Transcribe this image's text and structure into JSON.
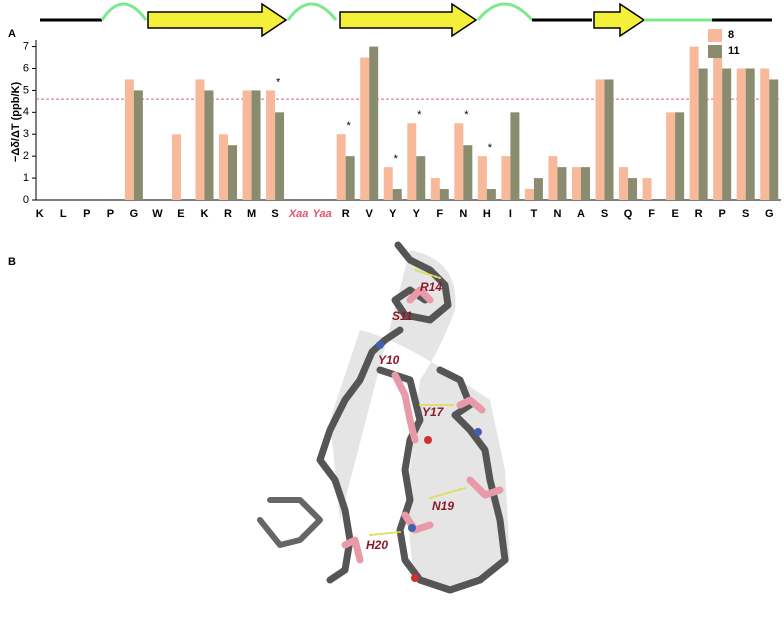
{
  "panel_labels": [
    "A",
    "B"
  ],
  "chart_data": {
    "type": "bar",
    "y_label": "−Δδ/ΔT (ppb/K)",
    "categories": [
      "K",
      "L",
      "P",
      "P",
      "G",
      "W",
      "E",
      "K",
      "R",
      "M",
      "S",
      "Xaa",
      "Yaa",
      "R",
      "V",
      "Y",
      "Y",
      "F",
      "N",
      "H",
      "I",
      "T",
      "N",
      "A",
      "S",
      "Q",
      "F",
      "E",
      "R",
      "P",
      "S",
      "G"
    ],
    "highlighted_indices": [
      11,
      12
    ],
    "highlight_color": "#e8506a",
    "series": [
      {
        "name": "8",
        "color": "#f7b99a",
        "values": [
          null,
          null,
          null,
          null,
          5.5,
          null,
          3.0,
          5.5,
          3.0,
          5.0,
          5.0,
          null,
          null,
          3.0,
          6.5,
          1.5,
          3.5,
          1.0,
          3.5,
          2.0,
          2.0,
          0.5,
          2.0,
          1.5,
          5.5,
          1.5,
          1.0,
          4.0,
          7.0,
          6.5,
          6.0,
          6.0
        ]
      },
      {
        "name": "11",
        "color": "#8a8c70",
        "values": [
          null,
          null,
          null,
          null,
          5.0,
          null,
          null,
          5.0,
          2.5,
          5.0,
          4.0,
          null,
          null,
          2.0,
          7.0,
          0.5,
          2.0,
          0.5,
          2.5,
          0.5,
          4.0,
          1.0,
          1.5,
          1.5,
          5.5,
          1.0,
          null,
          4.0,
          6.0,
          6.0,
          6.0,
          5.5
        ]
      }
    ],
    "ylim": [
      0,
      7.3
    ],
    "yticks": [
      0,
      1,
      2,
      3,
      4,
      5,
      6,
      7
    ],
    "reference_line": {
      "value": 4.6,
      "color": "#e0607a"
    },
    "annotations": [
      {
        "text": "*",
        "index": 10
      },
      {
        "text": "*",
        "index": 13
      },
      {
        "text": "*",
        "index": 15
      },
      {
        "text": "*",
        "index": 16
      },
      {
        "text": "*",
        "index": 18
      },
      {
        "text": "*",
        "index": 19
      }
    ],
    "legend": "top-right"
  },
  "structure": {
    "labels": [
      "R14",
      "S11",
      "Y10",
      "Y17",
      "N19",
      "H20"
    ]
  }
}
